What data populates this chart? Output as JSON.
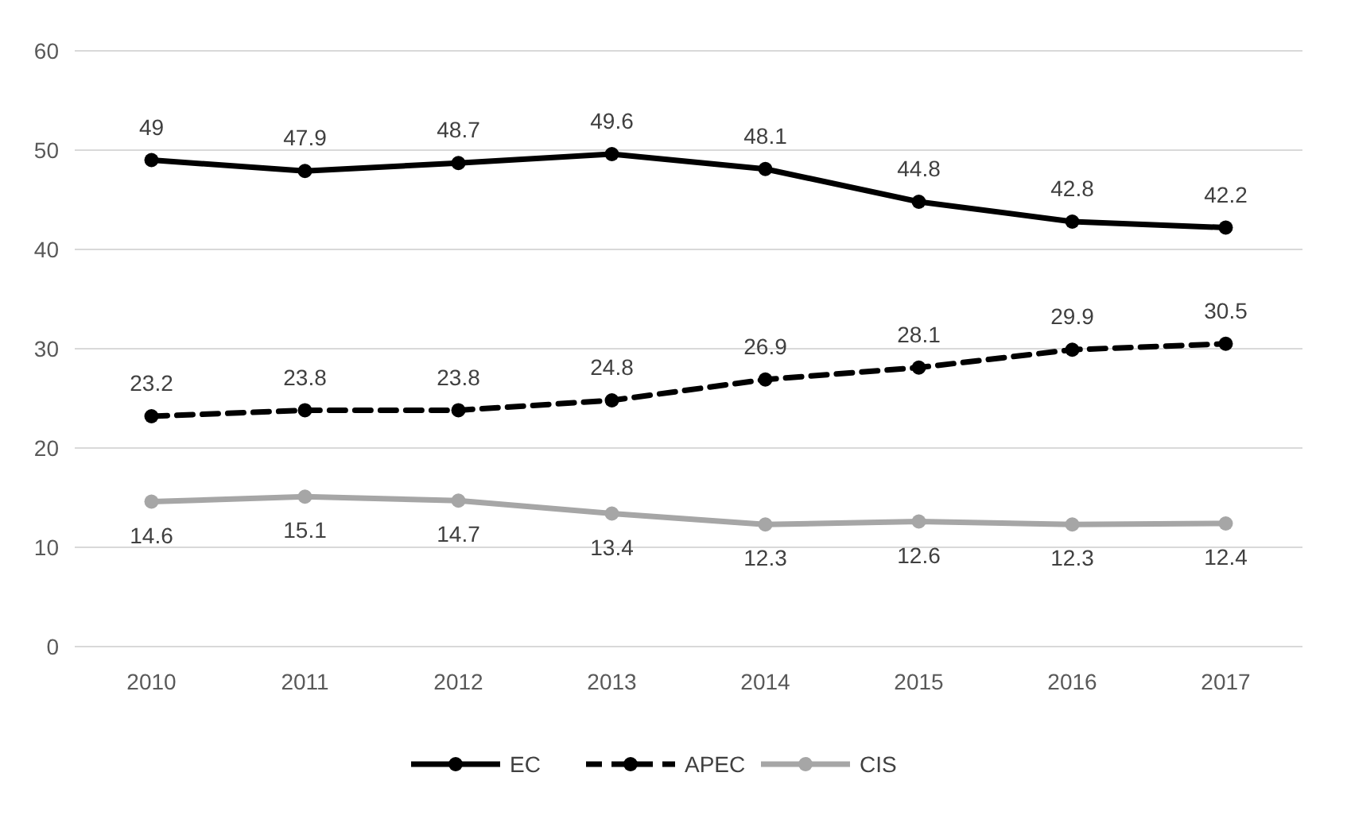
{
  "chart_data": {
    "type": "line",
    "categories": [
      "2010",
      "2011",
      "2012",
      "2013",
      "2014",
      "2015",
      "2016",
      "2017"
    ],
    "series": [
      {
        "name": "EC",
        "color": "#000000",
        "line_style": "solid",
        "values": [
          49,
          47.9,
          48.7,
          49.6,
          48.1,
          44.8,
          42.8,
          42.2
        ]
      },
      {
        "name": "APEC",
        "color": "#000000",
        "line_style": "dashed",
        "values": [
          23.2,
          23.8,
          23.8,
          24.8,
          26.9,
          28.1,
          29.9,
          30.5
        ]
      },
      {
        "name": "CIS",
        "color": "#a6a6a6",
        "line_style": "solid",
        "values": [
          14.6,
          15.1,
          14.7,
          13.4,
          12.3,
          12.6,
          12.3,
          12.4
        ]
      }
    ],
    "ylim": [
      0,
      60
    ],
    "yticks": [
      0,
      10,
      20,
      30,
      40,
      50,
      60
    ],
    "grid": "y",
    "legend": "bottom",
    "marker": "circle",
    "data_labels": true
  }
}
